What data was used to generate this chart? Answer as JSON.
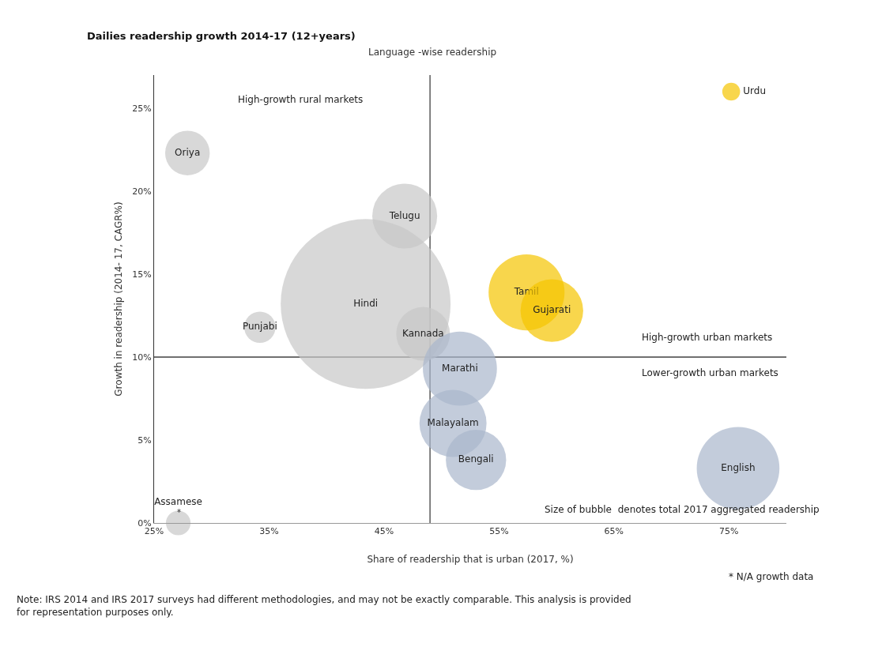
{
  "chart_data": {
    "type": "bubble",
    "title": "Dailies readership growth 2014-17 (12+years)",
    "subtitle": "Language -wise readership",
    "xlabel": "Share of readership that is urban (2017, %)",
    "ylabel": "Growth in readership (2014- 17, CAGR%)",
    "xlim": [
      25,
      80
    ],
    "xticks": [
      {
        "value": 25,
        "label": "25%"
      },
      {
        "value": 35,
        "label": "35%"
      },
      {
        "value": 45,
        "label": "45%"
      },
      {
        "value": 55,
        "label": "55%"
      },
      {
        "value": 65,
        "label": "65%"
      },
      {
        "value": 75,
        "label": "75%"
      }
    ],
    "ylim": [
      0,
      27
    ],
    "yticks": [
      {
        "value": 0,
        "label": "0%"
      },
      {
        "value": 5,
        "label": "5%"
      },
      {
        "value": 10,
        "label": "10%"
      },
      {
        "value": 15,
        "label": "15%"
      },
      {
        "value": 20,
        "label": "20%"
      },
      {
        "value": 25,
        "label": "25%"
      }
    ],
    "grid": false,
    "legend": false,
    "series": [
      {
        "name": "Oriya",
        "color": "#c8c8c8",
        "x": [
          27.9
        ],
        "values": [
          22.3
        ],
        "sizes": [
          0.069
        ]
      },
      {
        "name": "Telugu",
        "color": "#c8c8c8",
        "x": [
          46.8
        ],
        "values": [
          18.5
        ],
        "sizes": [
          0.146
        ]
      },
      {
        "name": "Hindi",
        "color": "#c8c8c8",
        "x": [
          43.4
        ],
        "values": [
          13.2
        ],
        "sizes": [
          1
        ]
      },
      {
        "name": "Punjabi",
        "color": "#c8c8c8",
        "x": [
          34.2
        ],
        "values": [
          11.8
        ],
        "sizes": [
          0.034
        ]
      },
      {
        "name": "Kannada",
        "color": "#c8c8c8",
        "x": [
          48.4
        ],
        "values": [
          11.4
        ],
        "sizes": [
          0.1
        ]
      },
      {
        "name": "Tamil",
        "color": "#f5c400",
        "x": [
          57.4
        ],
        "values": [
          13.9
        ],
        "sizes": [
          0.2
        ]
      },
      {
        "name": "Gujarati",
        "color": "#f5c400",
        "x": [
          59.6
        ],
        "values": [
          12.8
        ],
        "sizes": [
          0.136
        ]
      },
      {
        "name": "Urdu",
        "color": "#f5c400",
        "x": [
          75.2
        ],
        "values": [
          26
        ],
        "sizes": [
          0.011
        ]
      },
      {
        "name": "Marathi",
        "color": "#a9b6cc",
        "x": [
          51.6
        ],
        "values": [
          9.3
        ],
        "sizes": [
          0.19
        ]
      },
      {
        "name": "Malayalam",
        "color": "#a9b6cc",
        "x": [
          51
        ],
        "values": [
          6
        ],
        "sizes": [
          0.156
        ]
      },
      {
        "name": "Bengali",
        "color": "#a9b6cc",
        "x": [
          53
        ],
        "values": [
          3.8
        ],
        "sizes": [
          0.126
        ]
      },
      {
        "name": "English",
        "color": "#a9b6cc",
        "x": [
          75.8
        ],
        "values": [
          3.3
        ],
        "sizes": [
          0.237
        ]
      },
      {
        "name": "Assamese",
        "color": "#c8c8c8",
        "x": [
          27.1
        ],
        "values": [
          0
        ],
        "sizes": [
          0.021
        ]
      }
    ],
    "ref_lines": [
      {
        "axis": "x",
        "value": 49,
        "color": "#404040"
      },
      {
        "axis": "y",
        "value": 10,
        "color": "#404040"
      }
    ],
    "annotations": [
      "High-growth rural markets",
      "High-growth urban markets",
      "Lower-growth urban markets",
      "Size of bubble  denotes total 2017 aggregated readership",
      "* N/A growth data",
      "Note: IRS 2014 and IRS 2017 surveys had different methodologies, and may not be exactly comparable. This analysis is provided for representation purposes only.",
      "*"
    ]
  }
}
